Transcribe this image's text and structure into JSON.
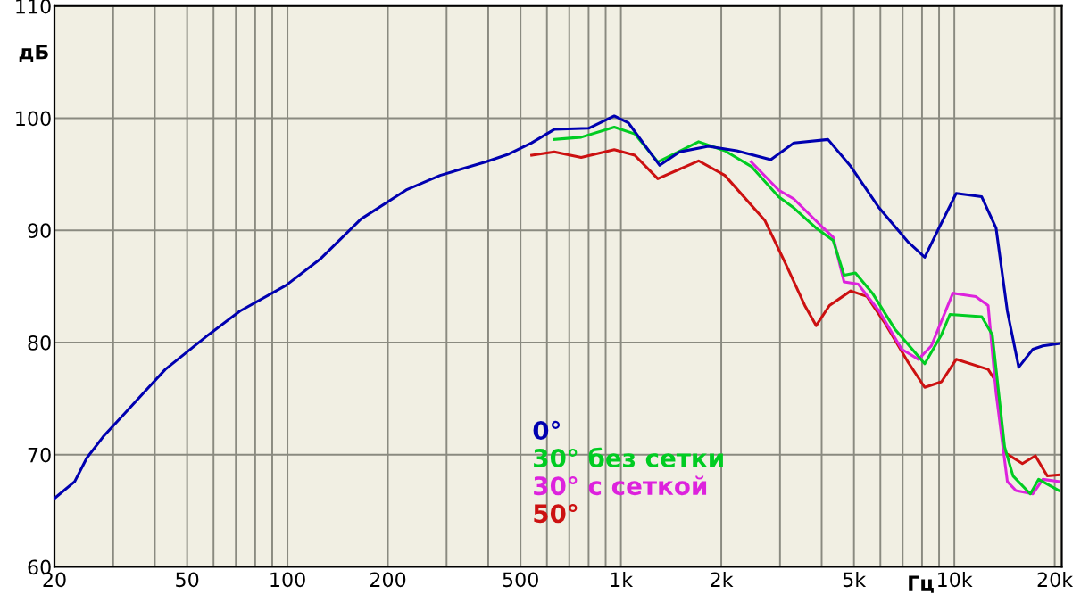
{
  "chart_data": {
    "type": "line",
    "xlabel": "Гц",
    "ylabel": "дБ",
    "log": "x",
    "grid": true,
    "legend": "bottom",
    "marker": "none",
    "line_style": "solid",
    "xlim": [
      20,
      21000
    ],
    "ylim": [
      60,
      110
    ],
    "xticks": [
      20,
      {
        "value": 30,
        "label": null
      },
      {
        "value": 40,
        "label": null
      },
      50,
      {
        "value": 60,
        "label": null
      },
      {
        "value": 70,
        "label": null
      },
      {
        "value": 80,
        "label": null
      },
      {
        "value": 90,
        "label": null
      },
      100,
      200,
      {
        "value": 300,
        "label": null
      },
      {
        "value": 400,
        "label": null
      },
      500,
      {
        "value": 600,
        "label": null
      },
      {
        "value": 700,
        "label": null
      },
      {
        "value": 800,
        "label": null
      },
      {
        "value": 900,
        "label": null
      },
      {
        "value": 1000,
        "label": "1k"
      },
      {
        "value": 2000,
        "label": "2k"
      },
      {
        "value": 3000,
        "label": null
      },
      {
        "value": 4000,
        "label": null
      },
      {
        "value": 5000,
        "label": "5k"
      },
      {
        "value": 6000,
        "label": null
      },
      {
        "value": 7000,
        "label": null
      },
      {
        "value": 8000,
        "label": null
      },
      {
        "value": 9000,
        "label": null
      },
      {
        "value": 10000,
        "label": "10k"
      },
      {
        "value": 20000,
        "label": "20k"
      }
    ],
    "yticks": [
      60,
      70,
      80,
      90,
      100,
      110
    ],
    "series": [
      {
        "name": "0°",
        "color": "#0000b0",
        "x": [
          20,
          23,
          25,
          28,
          33,
          37,
          43,
          58,
          72,
          99,
          126,
          166,
          227,
          287,
          393,
          461,
          540,
          631,
          800,
          955,
          1052,
          1185,
          1307,
          1500,
          1827,
          2225,
          2815,
          3300,
          4180,
          4890,
          5950,
          7245,
          8150,
          8990,
          10130,
          12080,
          13340,
          14420,
          15600,
          17200,
          18430,
          20560
        ],
        "values": [
          66.1,
          67.6,
          69.7,
          71.6,
          73.9,
          75.5,
          77.6,
          80.7,
          82.8,
          85.1,
          87.5,
          91.0,
          93.6,
          94.9,
          96.1,
          96.8,
          97.8,
          99.0,
          99.1,
          100.2,
          99.6,
          97.5,
          95.8,
          97.0,
          97.5,
          97.1,
          96.3,
          97.8,
          98.1,
          95.7,
          92.0,
          89.0,
          87.6,
          90.2,
          93.3,
          93.0,
          90.2,
          82.8,
          77.8,
          79.4,
          79.7,
          79.9
        ]
      },
      {
        "name": "30° без сетки",
        "color": "#00cc22",
        "x": [
          631,
          760,
          955,
          1100,
          1290,
          1710,
          2050,
          2460,
          2970,
          3300,
          3850,
          4330,
          4670,
          5050,
          5680,
          6630,
          8150,
          9150,
          9700,
          12080,
          13000,
          14150,
          15000,
          16900,
          17900,
          20560
        ],
        "values": [
          98.1,
          98.3,
          99.2,
          98.6,
          96.1,
          97.9,
          97.1,
          95.7,
          93.0,
          92.0,
          90.2,
          89.1,
          86.0,
          86.2,
          84.4,
          81.2,
          78.1,
          80.7,
          82.5,
          82.3,
          80.7,
          70.7,
          68.1,
          66.5,
          67.8,
          66.8
        ]
      },
      {
        "name": "30° с сеткой",
        "color": "#dd22dd",
        "x": [
          2460,
          2970,
          3300,
          4050,
          4330,
          4670,
          5150,
          5950,
          6950,
          7800,
          8530,
          9900,
          11600,
          12630,
          13340,
          14420,
          15300,
          17200,
          18430,
          20560
        ],
        "values": [
          96.1,
          93.6,
          92.8,
          90.2,
          89.4,
          85.4,
          85.2,
          82.8,
          79.4,
          78.5,
          79.7,
          84.4,
          84.1,
          83.3,
          75.5,
          67.6,
          66.8,
          66.5,
          67.8,
          67.6
        ]
      },
      {
        "name": "50°",
        "color": "#cc1111",
        "x": [
          540,
          631,
          760,
          955,
          1100,
          1290,
          1710,
          2050,
          2700,
          3120,
          3560,
          3850,
          4220,
          4890,
          5470,
          6170,
          7245,
          8150,
          9150,
          10130,
          12630,
          13340,
          14150,
          16000,
          17500,
          19000,
          20560
        ],
        "values": [
          96.7,
          97.0,
          96.5,
          97.2,
          96.7,
          94.6,
          96.2,
          94.9,
          90.9,
          87.0,
          83.3,
          81.5,
          83.3,
          84.6,
          84.1,
          81.8,
          78.3,
          76.0,
          76.5,
          78.5,
          77.6,
          76.5,
          70.2,
          69.2,
          69.9,
          68.1,
          68.2
        ]
      }
    ]
  }
}
